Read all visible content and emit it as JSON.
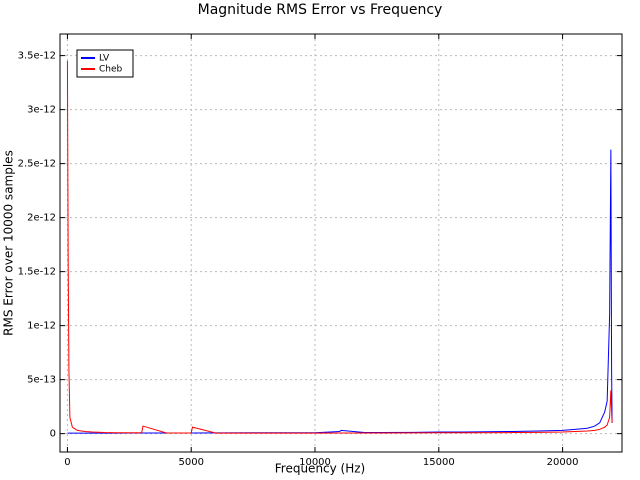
{
  "chart_data": {
    "type": "line",
    "title": "Magnitude RMS Error vs Frequency",
    "xlabel": "Frequency (Hz)",
    "ylabel": "RMS Error over 10000 samples",
    "x": [
      0,
      30,
      60,
      100,
      200,
      400,
      700,
      1000,
      1500,
      2000,
      3000,
      3050,
      4000,
      5000,
      5050,
      6000,
      8000,
      10000,
      11000,
      11050,
      12000,
      14000,
      15000,
      16000,
      18000,
      19000,
      20000,
      20500,
      21000,
      21300,
      21500,
      21700,
      21800,
      21900,
      21950,
      21980,
      22000
    ],
    "series": [
      {
        "name": "LV",
        "color": "#0000ff",
        "values": [
          5e-15,
          5e-15,
          5e-15,
          5e-15,
          5e-15,
          5e-15,
          5e-15,
          5e-15,
          5e-15,
          5e-15,
          6e-15,
          6e-15,
          6e-15,
          6e-15,
          6e-15,
          7e-15,
          8e-15,
          8e-15,
          2e-14,
          3e-14,
          1e-14,
          1.2e-14,
          1.5e-14,
          1.5e-14,
          2e-14,
          2.5e-14,
          3e-14,
          4e-14,
          5e-14,
          7e-14,
          1e-13,
          2e-13,
          3e-13,
          1.1e-12,
          2.63e-12,
          6e-13,
          1e-13
        ]
      },
      {
        "name": "Cheb",
        "color": "#ff0000",
        "values": [
          3.45e-12,
          1.6e-12,
          6e-13,
          1.5e-13,
          6e-14,
          3e-14,
          2e-14,
          1.5e-14,
          1e-14,
          8e-15,
          8e-15,
          7e-14,
          6e-15,
          6e-15,
          6e-14,
          5e-15,
          5e-15,
          5e-15,
          6e-15,
          6e-15,
          6e-15,
          7e-15,
          8e-15,
          8e-15,
          1e-14,
          1.2e-14,
          1.5e-14,
          2e-14,
          2.5e-14,
          3e-14,
          4e-14,
          6e-14,
          8e-14,
          1.5e-13,
          4e-13,
          2e-13,
          1e-13
        ]
      }
    ],
    "xlim": [
      -300,
      22400
    ],
    "xticks": [
      0,
      5000,
      10000,
      15000,
      20000
    ],
    "ylim": [
      -1.7e-13,
      3.7e-12
    ],
    "yticks": [
      0,
      5e-13,
      1e-12,
      1.5e-12,
      2e-12,
      2.5e-12,
      3e-12,
      3.5e-12
    ],
    "grid": true,
    "legend": "upper-left"
  }
}
